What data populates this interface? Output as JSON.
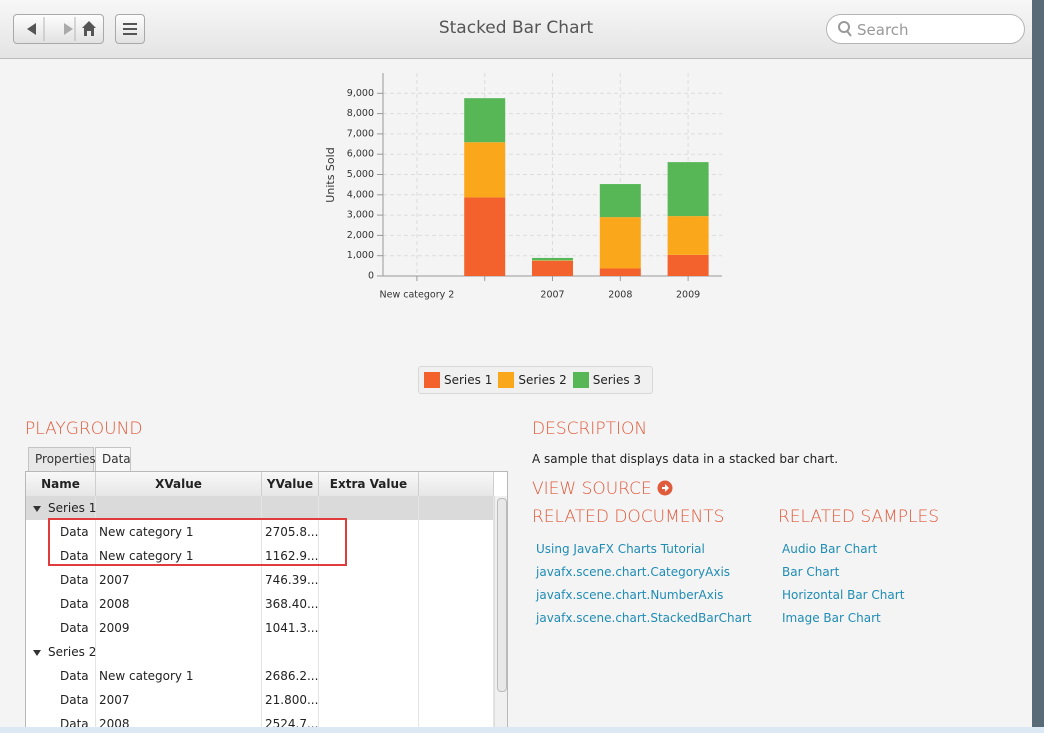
{
  "toolbar": {
    "title": "Stacked Bar Chart",
    "search_placeholder": "Search"
  },
  "chart_data": {
    "type": "bar",
    "stacked": true,
    "y_label": "Units Sold",
    "categories": [
      "New category 2",
      null,
      "2007",
      "2008",
      "2009"
    ],
    "series": [
      {
        "name": "Series 1",
        "color": "#f3622d",
        "values": [
          null,
          3870,
          750,
          370,
          1040
        ]
      },
      {
        "name": "Series 2",
        "color": "#fba71b",
        "values": [
          null,
          2720,
          20,
          2530,
          1910
        ]
      },
      {
        "name": "Series 3",
        "color": "#57b757",
        "values": [
          null,
          2170,
          120,
          1630,
          2660
        ]
      }
    ],
    "ylim": [
      0,
      10000
    ],
    "yticks": [
      0,
      {
        "value": 1000,
        "label": "1,000"
      },
      {
        "value": 2000,
        "label": "2,000"
      },
      {
        "value": 3000,
        "label": "3,000"
      },
      {
        "value": 4000,
        "label": "4,000"
      },
      {
        "value": 5000,
        "label": "5,000"
      },
      {
        "value": 6000,
        "label": "6,000"
      },
      {
        "value": 7000,
        "label": "7,000"
      },
      {
        "value": 8000,
        "label": "8,000"
      },
      {
        "value": 9000,
        "label": "9,000"
      }
    ],
    "grid": true
  },
  "playground": {
    "title": "PLAYGROUND",
    "tabs": [
      "Properties",
      "Data"
    ],
    "table": {
      "columns": [
        "Name",
        "XValue",
        "YValue",
        "Extra Value"
      ],
      "groups": [
        {
          "name": "Series 1",
          "rows": [
            [
              "Data",
              "New category 1",
              "2705.8..."
            ],
            [
              "Data",
              "New category 1",
              "1162.9..."
            ],
            [
              "Data",
              "2007",
              "746.39..."
            ],
            [
              "Data",
              "2008",
              "368.40..."
            ],
            [
              "Data",
              "2009",
              "1041.3..."
            ]
          ]
        },
        {
          "name": "Series 2",
          "rows": [
            [
              "Data",
              "New category 1",
              "2686.2..."
            ],
            [
              "Data",
              "2007",
              "21.800..."
            ],
            [
              "Data",
              "2008",
              "2524.7..."
            ]
          ]
        }
      ]
    }
  },
  "description": {
    "title": "DESCRIPTION",
    "text": "A sample that displays data in a stacked bar chart.",
    "view_source": "VIEW SOURCE"
  },
  "related_documents": {
    "title": "RELATED DOCUMENTS",
    "links": [
      "Using JavaFX Charts Tutorial",
      "javafx.scene.chart.CategoryAxis",
      "javafx.scene.chart.NumberAxis",
      "javafx.scene.chart.StackedBarChart"
    ]
  },
  "related_samples": {
    "title": "RELATED SAMPLES",
    "links": [
      "Audio Bar Chart",
      "Bar Chart",
      "Horizontal Bar Chart",
      "Image Bar Chart"
    ]
  }
}
